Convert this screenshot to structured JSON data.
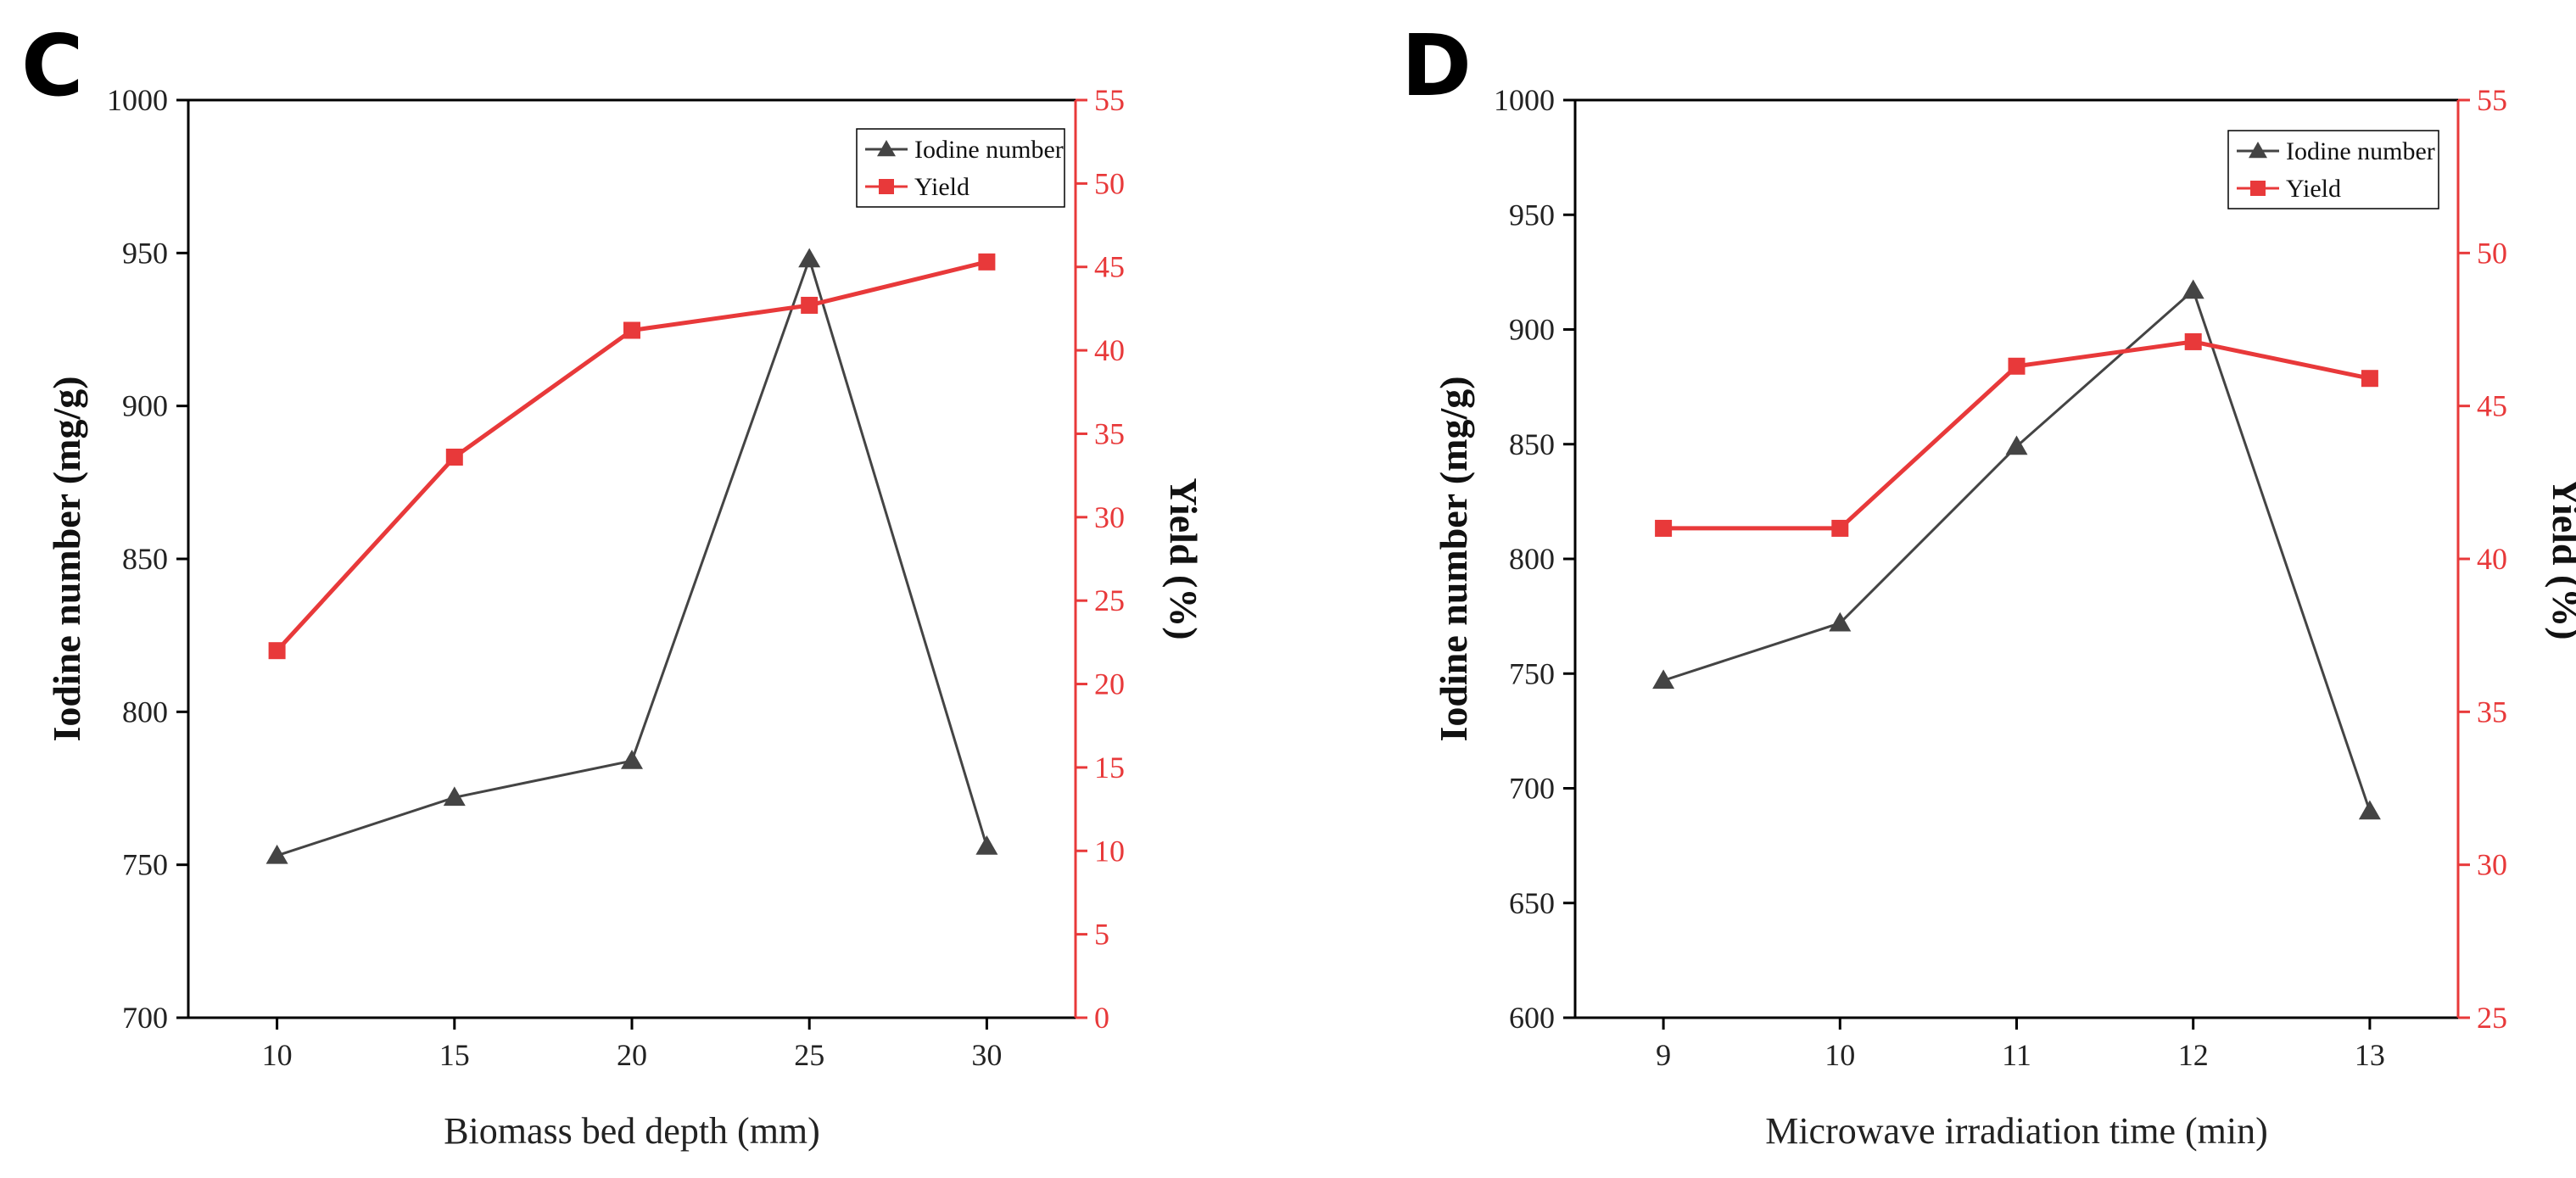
{
  "colors": {
    "iodine": "#444444",
    "yield": "#e8393a",
    "axis": "#000000"
  },
  "chart_data": [
    {
      "panel": "C",
      "type": "line",
      "xlabel": "Biomass bed depth (mm)",
      "ylabel": "Iodine number (mg/g)",
      "y2label": "Yield (%)",
      "x": [
        10,
        15,
        20,
        25,
        30
      ],
      "xlim": [
        7.5,
        32.5
      ],
      "ylim": [
        700,
        1000
      ],
      "y2lim": [
        0,
        55
      ],
      "yticks": [
        700,
        750,
        800,
        850,
        900,
        950,
        1000
      ],
      "y2ticks": [
        0,
        5,
        10,
        15,
        20,
        25,
        30,
        35,
        40,
        45,
        50,
        55
      ],
      "legend_position": "top-right",
      "series": [
        {
          "name": "Iodine number",
          "axis": "left",
          "marker": "triangle",
          "values": [
            753,
            772,
            784,
            948,
            756
          ]
        },
        {
          "name": "Yield",
          "axis": "right",
          "marker": "square",
          "values": [
            22,
            33.6,
            41.2,
            42.7,
            45.3
          ]
        }
      ]
    },
    {
      "panel": "D",
      "type": "line",
      "xlabel": "Microwave irradiation time (min)",
      "ylabel": "Iodine number (mg/g)",
      "y2label": "Yield (%)",
      "x": [
        9,
        10,
        11,
        12,
        13
      ],
      "xlim": [
        8.5,
        13.5
      ],
      "ylim": [
        600,
        1000
      ],
      "y2lim": [
        25,
        55
      ],
      "yticks": [
        600,
        650,
        700,
        750,
        800,
        850,
        900,
        950,
        1000
      ],
      "y2ticks": [
        25,
        30,
        35,
        40,
        45,
        50,
        55
      ],
      "legend_position": "top-right",
      "series": [
        {
          "name": "Iodine number",
          "axis": "left",
          "marker": "triangle",
          "values": [
            747,
            772,
            849,
            917,
            690
          ]
        },
        {
          "name": "Yield",
          "axis": "right",
          "marker": "square",
          "values": [
            41,
            41,
            46.3,
            47.1,
            45.9
          ]
        }
      ]
    }
  ]
}
